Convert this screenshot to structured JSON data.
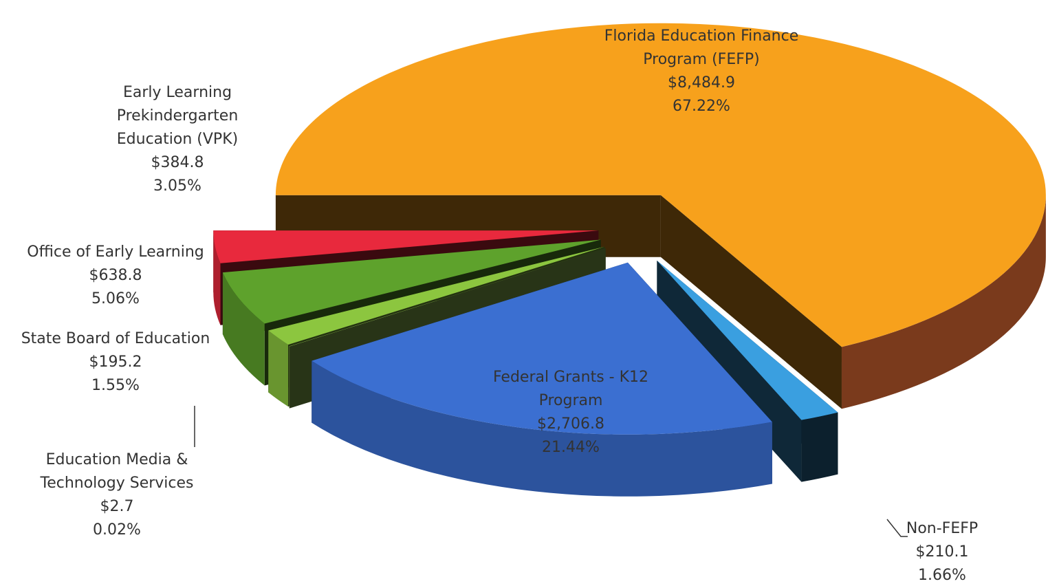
{
  "chart_data": {
    "type": "pie",
    "categories": [
      "Florida Education Finance Program (FEFP)",
      "Non-FEFP",
      "Federal Grants - K12 Program",
      "Education Media & Technology Services",
      "State Board of Education",
      "Office of Early Learning",
      "Early Learning Prekindergarten Education (VPK)"
    ],
    "values": [
      8484.9,
      210.1,
      2706.8,
      2.7,
      195.2,
      638.8,
      384.8
    ],
    "value_labels": [
      "$8,484.9",
      "$210.1",
      "$2,706.8",
      "$2.7",
      "$195.2",
      "$638.8",
      "$384.8"
    ],
    "percents": [
      67.22,
      1.66,
      21.44,
      0.02,
      1.55,
      5.06,
      3.05
    ],
    "percent_labels": [
      "67.22%",
      "1.66%",
      "21.44%",
      "0.02%",
      "1.55%",
      "5.06%",
      "3.05%"
    ],
    "colors": [
      "#f7a11c",
      "#3a9fe0",
      "#3b6fd1",
      "#9fd05a",
      "#8cc63f",
      "#5ea22c",
      "#e8293d"
    ]
  }
}
